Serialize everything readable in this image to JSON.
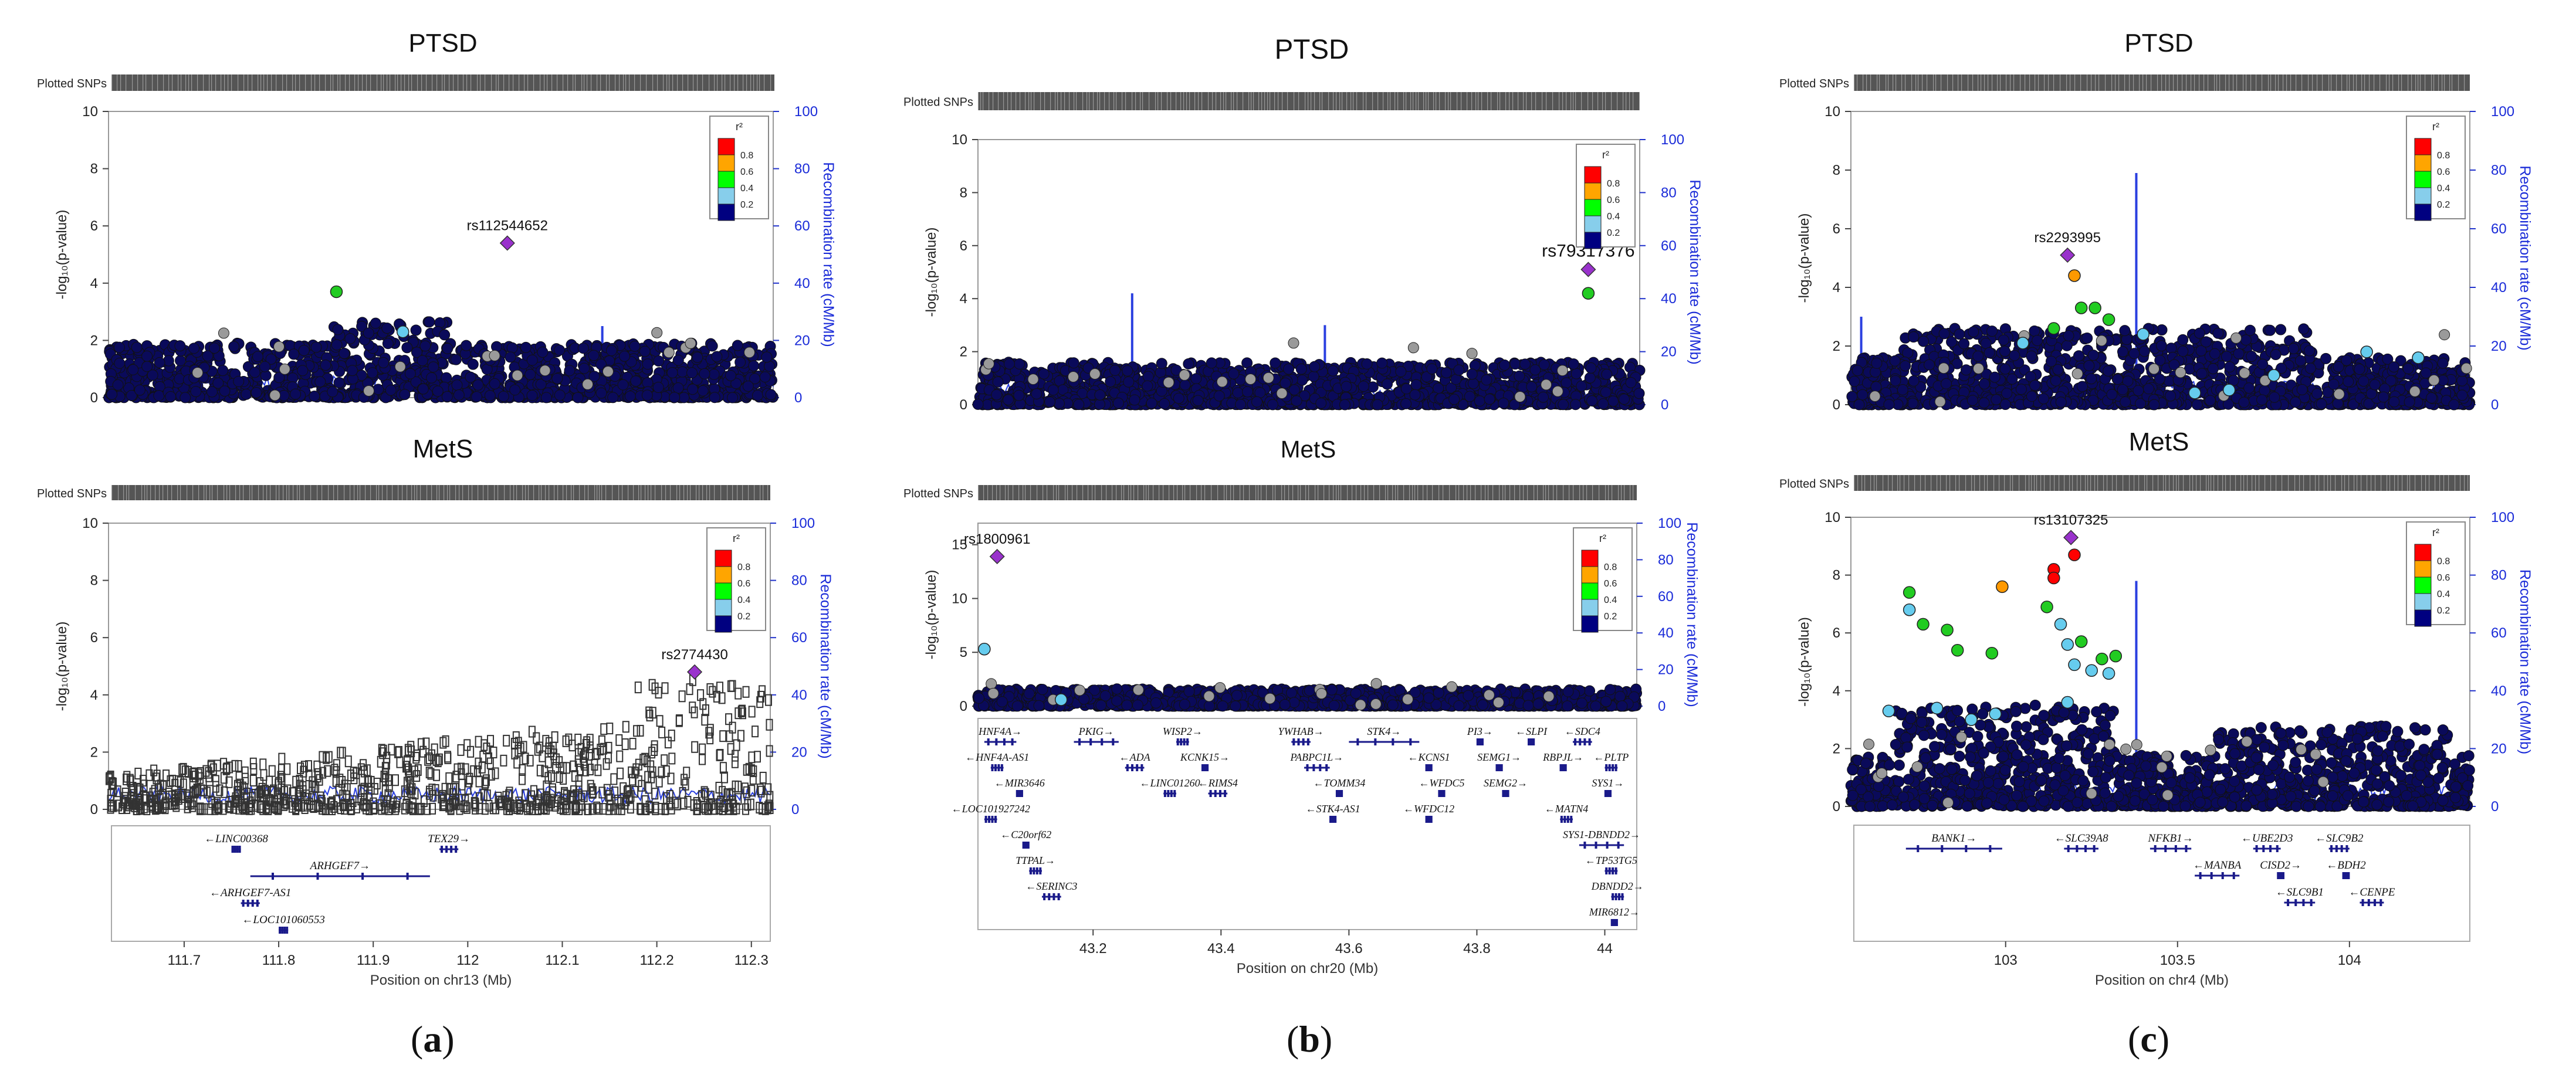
{
  "figure": {
    "panel_labels": [
      {
        "open": "(",
        "letter": "a",
        "close": ")"
      },
      {
        "open": "(",
        "letter": "b",
        "close": ")"
      },
      {
        "open": "(",
        "letter": "c",
        "close": ")"
      }
    ]
  },
  "chart_data": [
    {
      "id": "a-top",
      "type": "scatter",
      "title": "PTSD",
      "plotted_snps_label": "Plotted SNPs",
      "ylabel": "-log₁₀(p-value)",
      "y2label": "Recombination rate (cM/Mb)",
      "xlim": [
        111.62,
        112.32
      ],
      "ylim": [
        0,
        10
      ],
      "y2lim": [
        0,
        100
      ],
      "yticks": [
        0,
        2,
        4,
        6,
        8,
        10
      ],
      "y2ticks": [
        0,
        20,
        40,
        60,
        80,
        100
      ],
      "legend": {
        "title": "r²",
        "labels": [
          "0.8",
          "0.6",
          "0.4",
          "0.2"
        ],
        "colors": [
          "#ff0000",
          "#ffa500",
          "#00ff00",
          "#87ceeb",
          "#000080"
        ],
        "position": "top-right"
      },
      "lead_snp": {
        "name": "rs112544652",
        "x": 112.04,
        "y": 5.4
      },
      "colored_points": [
        {
          "x": 111.86,
          "y": 3.7,
          "color": "#22cc22"
        },
        {
          "x": 111.93,
          "y": 2.3,
          "color": "#66ccee"
        }
      ],
      "recomb_spikes": [
        {
          "x": 112.14,
          "v": 25
        }
      ],
      "marker": "circle",
      "point_color": "#0a0a5a"
    },
    {
      "id": "a-bottom",
      "type": "scatter",
      "title": "MetS",
      "plotted_snps_label": "Plotted SNPs",
      "ylabel": "-log₁₀(p-value)",
      "y2label": "Recombination rate (cM/Mb)",
      "xlim": [
        111.62,
        112.32
      ],
      "ylim": [
        0,
        10
      ],
      "y2lim": [
        0,
        100
      ],
      "yticks": [
        0,
        2,
        4,
        6,
        8,
        10
      ],
      "y2ticks": [
        0,
        20,
        40,
        60,
        80,
        100
      ],
      "xticks": [
        111.7,
        111.8,
        111.9,
        112,
        112.1,
        112.2,
        112.3
      ],
      "xticklabels": [
        "111.7",
        "111.8",
        "111.9",
        "112",
        "112.1",
        "112.2",
        "112.3"
      ],
      "xlabel": "Position on chr13 (Mb)",
      "legend": {
        "title": "r²",
        "labels": [
          "0.8",
          "0.6",
          "0.4",
          "0.2"
        ],
        "colors": [
          "#ff0000",
          "#ffa500",
          "#00ff00",
          "#87ceeb",
          "#000080"
        ],
        "position": "top-right"
      },
      "lead_snp": {
        "name": "rs2774430",
        "x": 112.24,
        "y": 4.8
      },
      "colored_points": [],
      "recomb_spikes": [],
      "marker": "open-square",
      "point_color": "#444444",
      "genes": [
        {
          "name": "LINC00368",
          "start": 111.75,
          "end": 111.76,
          "dir": "left",
          "row": 0
        },
        {
          "name": "TEX29",
          "start": 111.97,
          "end": 111.99,
          "dir": "right",
          "row": 0
        },
        {
          "name": "ARHGEF7",
          "start": 111.77,
          "end": 111.96,
          "dir": "right",
          "row": 1
        },
        {
          "name": "ARHGEF7-AS1",
          "start": 111.76,
          "end": 111.78,
          "dir": "left",
          "row": 2
        },
        {
          "name": "LOC101060553",
          "start": 111.8,
          "end": 111.81,
          "dir": "left",
          "row": 3
        }
      ]
    },
    {
      "id": "b-top",
      "type": "scatter",
      "title": "PTSD",
      "plotted_snps_label": "Plotted SNPs",
      "ylabel": "-log₁₀(p-value)",
      "y2label": "Recombination rate (cM/Mb)",
      "xlim": [
        43.02,
        44.05
      ],
      "ylim": [
        0,
        10
      ],
      "y2lim": [
        0,
        100
      ],
      "yticks": [
        0,
        2,
        4,
        6,
        8,
        10
      ],
      "y2ticks": [
        0,
        20,
        40,
        60,
        80,
        100
      ],
      "legend": {
        "title": "r²",
        "labels": [
          "0.8",
          "0.6",
          "0.4",
          "0.2"
        ],
        "colors": [
          "#ff0000",
          "#ffa500",
          "#00ff00",
          "#87ceeb",
          "#000080"
        ],
        "position": "top-right"
      },
      "lead_snp": {
        "name": "rs79317376",
        "x": 43.97,
        "y": 5.1
      },
      "colored_points": [
        {
          "x": 43.97,
          "y": 4.2,
          "color": "#22cc22"
        }
      ],
      "recomb_spikes": [
        {
          "x": 43.26,
          "v": 42
        },
        {
          "x": 43.56,
          "v": 30
        }
      ],
      "marker": "circle",
      "point_color": "#0a0a5a"
    },
    {
      "id": "b-bottom",
      "type": "scatter",
      "title": "MetS",
      "plotted_snps_label": "Plotted SNPs",
      "ylabel": "-log₁₀(p-value)",
      "y2label": "Recombination rate (cM/Mb)",
      "xlim": [
        43.02,
        44.05
      ],
      "ylim": [
        0,
        17
      ],
      "y2lim": [
        0,
        100
      ],
      "yticks": [
        0,
        5,
        10,
        15
      ],
      "y2ticks": [
        0,
        20,
        40,
        60,
        80,
        100
      ],
      "xticks": [
        43.2,
        43.4,
        43.6,
        43.8,
        44
      ],
      "xticklabels": [
        "43.2",
        "43.4",
        "43.6",
        "43.8",
        "44"
      ],
      "xlabel": "Position on chr20 (Mb)",
      "legend": {
        "title": "r²",
        "labels": [
          "0.8",
          "0.6",
          "0.4",
          "0.2"
        ],
        "colors": [
          "#ff0000",
          "#ffa500",
          "#00ff00",
          "#87ceeb",
          "#000080"
        ],
        "position": "top-right"
      },
      "lead_snp": {
        "name": "rs1800961",
        "x": 43.05,
        "y": 13.9
      },
      "colored_points": [
        {
          "x": 43.03,
          "y": 5.3,
          "color": "#66ccee"
        },
        {
          "x": 43.15,
          "y": 0.6,
          "color": "#66ccee"
        }
      ],
      "recomb_spikes": [],
      "marker": "circle",
      "point_color": "#0a0a5a",
      "genes": [
        {
          "name": "HNF4A",
          "start": 43.03,
          "end": 43.08,
          "dir": "right",
          "row": 0
        },
        {
          "name": "PKIG",
          "start": 43.17,
          "end": 43.24,
          "dir": "right",
          "row": 0
        },
        {
          "name": "WISP2",
          "start": 43.33,
          "end": 43.35,
          "dir": "right",
          "row": 0
        },
        {
          "name": "YWHAB",
          "start": 43.51,
          "end": 43.54,
          "dir": "right",
          "row": 0
        },
        {
          "name": "STK4",
          "start": 43.6,
          "end": 43.71,
          "dir": "right",
          "row": 0
        },
        {
          "name": "PI3",
          "start": 43.8,
          "end": 43.81,
          "dir": "right",
          "row": 0
        },
        {
          "name": "SLPI",
          "start": 43.88,
          "end": 43.89,
          "dir": "left",
          "row": 0
        },
        {
          "name": "SDC4",
          "start": 43.95,
          "end": 43.98,
          "dir": "left",
          "row": 0
        },
        {
          "name": "HNF4A-AS1",
          "start": 43.04,
          "end": 43.06,
          "dir": "left",
          "row": 1
        },
        {
          "name": "ADA",
          "start": 43.25,
          "end": 43.28,
          "dir": "left",
          "row": 1
        },
        {
          "name": "KCNK15",
          "start": 43.37,
          "end": 43.38,
          "dir": "right",
          "row": 1
        },
        {
          "name": "PABPC1L",
          "start": 43.53,
          "end": 43.57,
          "dir": "right",
          "row": 1
        },
        {
          "name": "KCNS1",
          "start": 43.72,
          "end": 43.73,
          "dir": "left",
          "row": 1
        },
        {
          "name": "SEMG1",
          "start": 43.83,
          "end": 43.84,
          "dir": "right",
          "row": 1
        },
        {
          "name": "RBPJL",
          "start": 43.93,
          "end": 43.94,
          "dir": "right",
          "row": 1
        },
        {
          "name": "PLTP",
          "start": 44.0,
          "end": 44.02,
          "dir": "left",
          "row": 1
        },
        {
          "name": "MIR3646",
          "start": 43.08,
          "end": 43.09,
          "dir": "left",
          "row": 2
        },
        {
          "name": "LINC01260",
          "start": 43.31,
          "end": 43.33,
          "dir": "left",
          "row": 2
        },
        {
          "name": "RIMS4",
          "start": 43.38,
          "end": 43.41,
          "dir": "left",
          "row": 2
        },
        {
          "name": "TOMM34",
          "start": 43.58,
          "end": 43.59,
          "dir": "left",
          "row": 2
        },
        {
          "name": "WFDC5",
          "start": 43.74,
          "end": 43.75,
          "dir": "left",
          "row": 2
        },
        {
          "name": "SEMG2",
          "start": 43.84,
          "end": 43.85,
          "dir": "right",
          "row": 2
        },
        {
          "name": "SYS1",
          "start": 44.0,
          "end": 44.01,
          "dir": "right",
          "row": 2
        },
        {
          "name": "LOC101927242",
          "start": 43.03,
          "end": 43.05,
          "dir": "left",
          "row": 3
        },
        {
          "name": "STK4-AS1",
          "start": 43.57,
          "end": 43.58,
          "dir": "left",
          "row": 3
        },
        {
          "name": "WFDC12",
          "start": 43.72,
          "end": 43.73,
          "dir": "left",
          "row": 3
        },
        {
          "name": "MATN4",
          "start": 43.93,
          "end": 43.95,
          "dir": "left",
          "row": 3
        },
        {
          "name": "C20orf62",
          "start": 43.09,
          "end": 43.1,
          "dir": "left",
          "row": 4
        },
        {
          "name": "SYS1-DBNDD2",
          "start": 43.96,
          "end": 44.03,
          "dir": "right",
          "row": 4
        },
        {
          "name": "TTPAL",
          "start": 43.1,
          "end": 43.12,
          "dir": "right",
          "row": 5
        },
        {
          "name": "TP53TG5",
          "start": 44.0,
          "end": 44.02,
          "dir": "left",
          "row": 5
        },
        {
          "name": "SERINC3",
          "start": 43.12,
          "end": 43.15,
          "dir": "left",
          "row": 6
        },
        {
          "name": "DBNDD2",
          "start": 44.01,
          "end": 44.03,
          "dir": "right",
          "row": 6
        },
        {
          "name": "MIR6812",
          "start": 44.01,
          "end": 44.02,
          "dir": "right",
          "row": 7
        }
      ]
    },
    {
      "id": "c-top",
      "type": "scatter",
      "title": "PTSD",
      "plotted_snps_label": "Plotted SNPs",
      "ylabel": "-log₁₀(p-value)",
      "y2label": "Recombination rate (cM/Mb)",
      "xlim": [
        102.55,
        104.35
      ],
      "ylim": [
        0,
        10
      ],
      "y2lim": [
        0,
        100
      ],
      "yticks": [
        0,
        2,
        4,
        6,
        8,
        10
      ],
      "y2ticks": [
        0,
        20,
        40,
        60,
        80,
        100
      ],
      "legend": {
        "title": "r²",
        "labels": [
          "0.8",
          "0.6",
          "0.4",
          "0.2"
        ],
        "colors": [
          "#ff0000",
          "#ffa500",
          "#00ff00",
          "#87ceeb",
          "#000080"
        ],
        "position": "top-right"
      },
      "lead_snp": {
        "name": "rs2293995",
        "x": 103.18,
        "y": 5.1
      },
      "colored_points": [
        {
          "x": 103.2,
          "y": 4.4,
          "color": "#ff9900"
        },
        {
          "x": 103.22,
          "y": 3.3,
          "color": "#22cc22"
        },
        {
          "x": 103.26,
          "y": 3.3,
          "color": "#22cc22"
        },
        {
          "x": 103.14,
          "y": 2.6,
          "color": "#22cc22"
        },
        {
          "x": 103.3,
          "y": 2.9,
          "color": "#22cc22"
        },
        {
          "x": 103.4,
          "y": 2.4,
          "color": "#66ccee"
        },
        {
          "x": 103.55,
          "y": 0.4,
          "color": "#66ccee"
        },
        {
          "x": 103.65,
          "y": 0.5,
          "color": "#66ccee"
        },
        {
          "x": 103.78,
          "y": 1.0,
          "color": "#66ccee"
        },
        {
          "x": 104.05,
          "y": 1.8,
          "color": "#66ccee"
        },
        {
          "x": 104.2,
          "y": 1.6,
          "color": "#66ccee"
        },
        {
          "x": 103.05,
          "y": 2.1,
          "color": "#66ccee"
        }
      ],
      "recomb_spikes": [
        {
          "x": 103.38,
          "v": 79
        },
        {
          "x": 102.58,
          "v": 30
        }
      ],
      "marker": "circle",
      "point_color": "#0a0a5a"
    },
    {
      "id": "c-bottom",
      "type": "scatter",
      "title": "MetS",
      "plotted_snps_label": "Plotted SNPs",
      "ylabel": "-log₁₀(p-value)",
      "y2label": "Recombination rate (cM/Mb)",
      "xlim": [
        102.55,
        104.35
      ],
      "ylim": [
        0,
        10
      ],
      "y2lim": [
        0,
        100
      ],
      "yticks": [
        0,
        2,
        4,
        6,
        8,
        10
      ],
      "y2ticks": [
        0,
        20,
        40,
        60,
        80,
        100
      ],
      "xticks": [
        103,
        103.5,
        104
      ],
      "xticklabels": [
        "103",
        "103.5",
        "104"
      ],
      "xlabel": "Position on chr4 (Mb)",
      "legend": {
        "title": "r²",
        "labels": [
          "0.8",
          "0.6",
          "0.4",
          "0.2"
        ],
        "colors": [
          "#ff0000",
          "#ffa500",
          "#00ff00",
          "#87ceeb",
          "#000080"
        ],
        "position": "top-right"
      },
      "lead_snp": {
        "name": "rs13107325",
        "x": 103.19,
        "y": 9.3
      },
      "colored_points": [
        {
          "x": 103.14,
          "y": 8.2,
          "color": "#ff0000"
        },
        {
          "x": 103.14,
          "y": 7.9,
          "color": "#ff0000"
        },
        {
          "x": 103.2,
          "y": 8.7,
          "color": "#ff0000"
        },
        {
          "x": 102.99,
          "y": 7.6,
          "color": "#ff9900"
        },
        {
          "x": 102.72,
          "y": 7.4,
          "color": "#22cc22"
        },
        {
          "x": 102.76,
          "y": 6.3,
          "color": "#22cc22"
        },
        {
          "x": 102.83,
          "y": 6.1,
          "color": "#22cc22"
        },
        {
          "x": 102.86,
          "y": 5.4,
          "color": "#22cc22"
        },
        {
          "x": 102.96,
          "y": 5.3,
          "color": "#22cc22"
        },
        {
          "x": 103.12,
          "y": 6.9,
          "color": "#22cc22"
        },
        {
          "x": 103.22,
          "y": 5.7,
          "color": "#22cc22"
        },
        {
          "x": 103.28,
          "y": 5.1,
          "color": "#22cc22"
        },
        {
          "x": 103.32,
          "y": 5.2,
          "color": "#22cc22"
        },
        {
          "x": 102.72,
          "y": 6.8,
          "color": "#66ccee"
        },
        {
          "x": 103.16,
          "y": 6.3,
          "color": "#66ccee"
        },
        {
          "x": 103.18,
          "y": 5.6,
          "color": "#66ccee"
        },
        {
          "x": 103.2,
          "y": 4.9,
          "color": "#66ccee"
        },
        {
          "x": 103.25,
          "y": 4.7,
          "color": "#66ccee"
        },
        {
          "x": 103.3,
          "y": 4.6,
          "color": "#66ccee"
        },
        {
          "x": 102.8,
          "y": 3.4,
          "color": "#66ccee"
        },
        {
          "x": 102.9,
          "y": 3.0,
          "color": "#66ccee"
        },
        {
          "x": 102.97,
          "y": 3.2,
          "color": "#66ccee"
        },
        {
          "x": 103.18,
          "y": 3.6,
          "color": "#66ccee"
        },
        {
          "x": 102.66,
          "y": 3.3,
          "color": "#66ccee"
        }
      ],
      "recomb_spikes": [
        {
          "x": 103.38,
          "v": 78
        }
      ],
      "marker": "circle",
      "point_color": "#0a0a5a",
      "genes": [
        {
          "name": "BANK1",
          "start": 102.71,
          "end": 102.99,
          "dir": "right",
          "row": 0
        },
        {
          "name": "SLC39A8",
          "start": 103.17,
          "end": 103.27,
          "dir": "left",
          "row": 0
        },
        {
          "name": "NFKB1",
          "start": 103.42,
          "end": 103.54,
          "dir": "right",
          "row": 0
        },
        {
          "name": "UBE2D3",
          "start": 103.72,
          "end": 103.8,
          "dir": "left",
          "row": 0
        },
        {
          "name": "SLC9B2",
          "start": 103.94,
          "end": 104.0,
          "dir": "left",
          "row": 0
        },
        {
          "name": "MANBA",
          "start": 103.55,
          "end": 103.68,
          "dir": "left",
          "row": 1
        },
        {
          "name": "CISD2",
          "start": 103.79,
          "end": 103.81,
          "dir": "right",
          "row": 1
        },
        {
          "name": "BDH2",
          "start": 103.98,
          "end": 104.0,
          "dir": "left",
          "row": 1
        },
        {
          "name": "SLC9B1",
          "start": 103.81,
          "end": 103.9,
          "dir": "left",
          "row": 2
        },
        {
          "name": "CENPE",
          "start": 104.03,
          "end": 104.1,
          "dir": "left",
          "row": 2
        }
      ]
    }
  ]
}
